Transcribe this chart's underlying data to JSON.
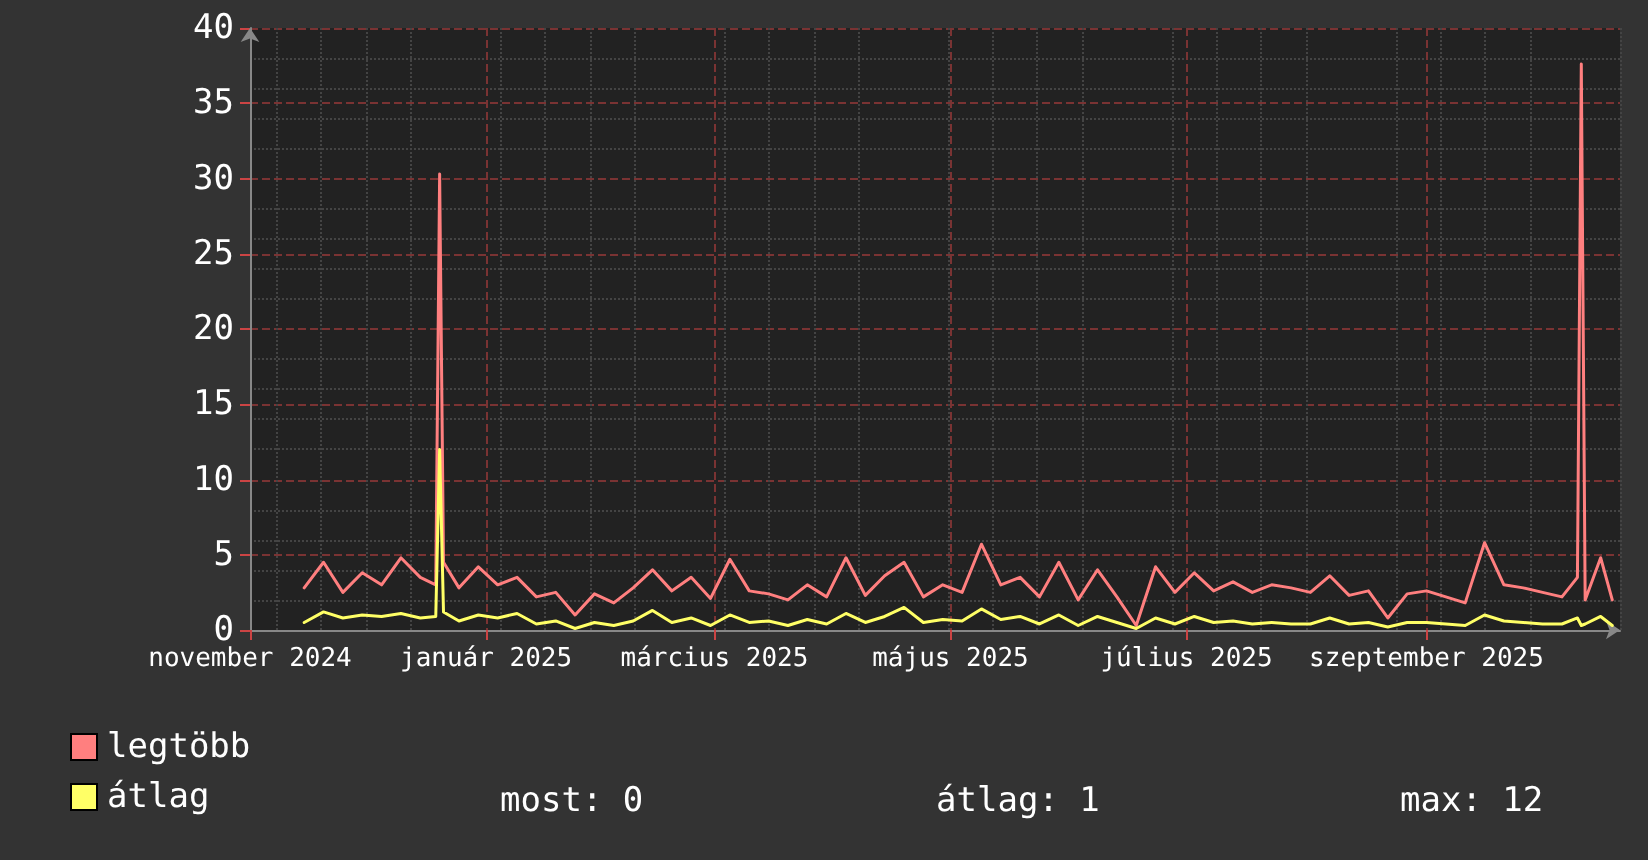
{
  "chart_data": {
    "type": "line",
    "x": [
      "2024-11-15",
      "2024-11-20",
      "2024-11-25",
      "2024-11-30",
      "2024-12-05",
      "2024-12-10",
      "2024-12-15",
      "2024-12-19",
      "2024-12-20",
      "2024-12-21",
      "2024-12-25",
      "2024-12-30",
      "2025-01-04",
      "2025-01-09",
      "2025-01-14",
      "2025-01-19",
      "2025-01-24",
      "2025-01-29",
      "2025-02-03",
      "2025-02-08",
      "2025-02-13",
      "2025-02-18",
      "2025-02-23",
      "2025-02-28",
      "2025-03-05",
      "2025-03-10",
      "2025-03-15",
      "2025-03-20",
      "2025-03-25",
      "2025-03-30",
      "2025-04-04",
      "2025-04-09",
      "2025-04-14",
      "2025-04-19",
      "2025-04-24",
      "2025-04-29",
      "2025-05-04",
      "2025-05-09",
      "2025-05-14",
      "2025-05-19",
      "2025-05-24",
      "2025-05-29",
      "2025-06-03",
      "2025-06-08",
      "2025-06-13",
      "2025-06-18",
      "2025-06-23",
      "2025-06-28",
      "2025-07-03",
      "2025-07-08",
      "2025-07-13",
      "2025-07-18",
      "2025-07-23",
      "2025-07-28",
      "2025-08-02",
      "2025-08-07",
      "2025-08-12",
      "2025-08-17",
      "2025-08-22",
      "2025-08-27",
      "2025-09-01",
      "2025-09-06",
      "2025-09-11",
      "2025-09-16",
      "2025-09-21",
      "2025-09-26",
      "2025-10-01",
      "2025-10-06",
      "2025-10-10",
      "2025-10-11",
      "2025-10-12",
      "2025-10-16",
      "2025-10-19"
    ],
    "series": [
      {
        "name": "legtöbb",
        "color": "#ff7f7f",
        "values": [
          2.8,
          4.5,
          2.5,
          3.8,
          3.0,
          4.8,
          3.5,
          3.0,
          30.3,
          4.5,
          2.8,
          4.2,
          3.0,
          3.5,
          2.2,
          2.5,
          1.0,
          2.4,
          1.8,
          2.8,
          4.0,
          2.6,
          3.5,
          2.1,
          4.7,
          2.6,
          2.4,
          2.0,
          3.0,
          2.2,
          4.8,
          2.3,
          3.6,
          4.5,
          2.2,
          3.0,
          2.5,
          5.7,
          3.0,
          3.5,
          2.2,
          4.5,
          2.0,
          4.0,
          2.2,
          0.3,
          4.2,
          2.5,
          3.8,
          2.6,
          3.2,
          2.5,
          3.0,
          2.8,
          2.5,
          3.6,
          2.3,
          2.6,
          0.8,
          2.4,
          2.6,
          2.2,
          1.8,
          5.8,
          3.0,
          2.8,
          2.5,
          2.2,
          3.5,
          37.6,
          2.0,
          4.8,
          2.0
        ]
      },
      {
        "name": "átlag",
        "color": "#ffff66",
        "values": [
          0.5,
          1.2,
          0.8,
          1.0,
          0.9,
          1.1,
          0.8,
          0.9,
          12.0,
          1.2,
          0.6,
          1.0,
          0.8,
          1.1,
          0.4,
          0.6,
          0.1,
          0.5,
          0.3,
          0.6,
          1.3,
          0.5,
          0.8,
          0.3,
          1.0,
          0.5,
          0.6,
          0.3,
          0.7,
          0.4,
          1.1,
          0.5,
          0.9,
          1.5,
          0.5,
          0.7,
          0.6,
          1.4,
          0.7,
          0.9,
          0.4,
          1.0,
          0.3,
          0.9,
          0.5,
          0.1,
          0.8,
          0.4,
          0.9,
          0.5,
          0.6,
          0.4,
          0.5,
          0.4,
          0.4,
          0.8,
          0.4,
          0.5,
          0.2,
          0.5,
          0.5,
          0.4,
          0.3,
          1.0,
          0.6,
          0.5,
          0.4,
          0.4,
          0.8,
          0.3,
          0.4,
          0.9,
          0.3
        ]
      }
    ],
    "xlim": [
      "2024-11-01",
      "2025-10-21"
    ],
    "xticks": [
      {
        "value": "2024-11-01",
        "label": "november 2024"
      },
      {
        "value": "2025-01-01",
        "label": "január 2025"
      },
      {
        "value": "2025-03-01",
        "label": "március 2025"
      },
      {
        "value": "2025-05-01",
        "label": "május 2025"
      },
      {
        "value": "2025-07-01",
        "label": "július 2025"
      },
      {
        "value": "2025-09-01",
        "label": "szeptember 2025"
      }
    ],
    "ylim": [
      0,
      40
    ],
    "yticks": [
      0,
      5,
      10,
      15,
      20,
      25,
      30,
      35,
      40
    ],
    "grid": true,
    "legend": "bottom left",
    "marker": "none",
    "line_style": "solid",
    "annotations": [
      "most: 0",
      "átlag: 1",
      "max: 12"
    ]
  }
}
